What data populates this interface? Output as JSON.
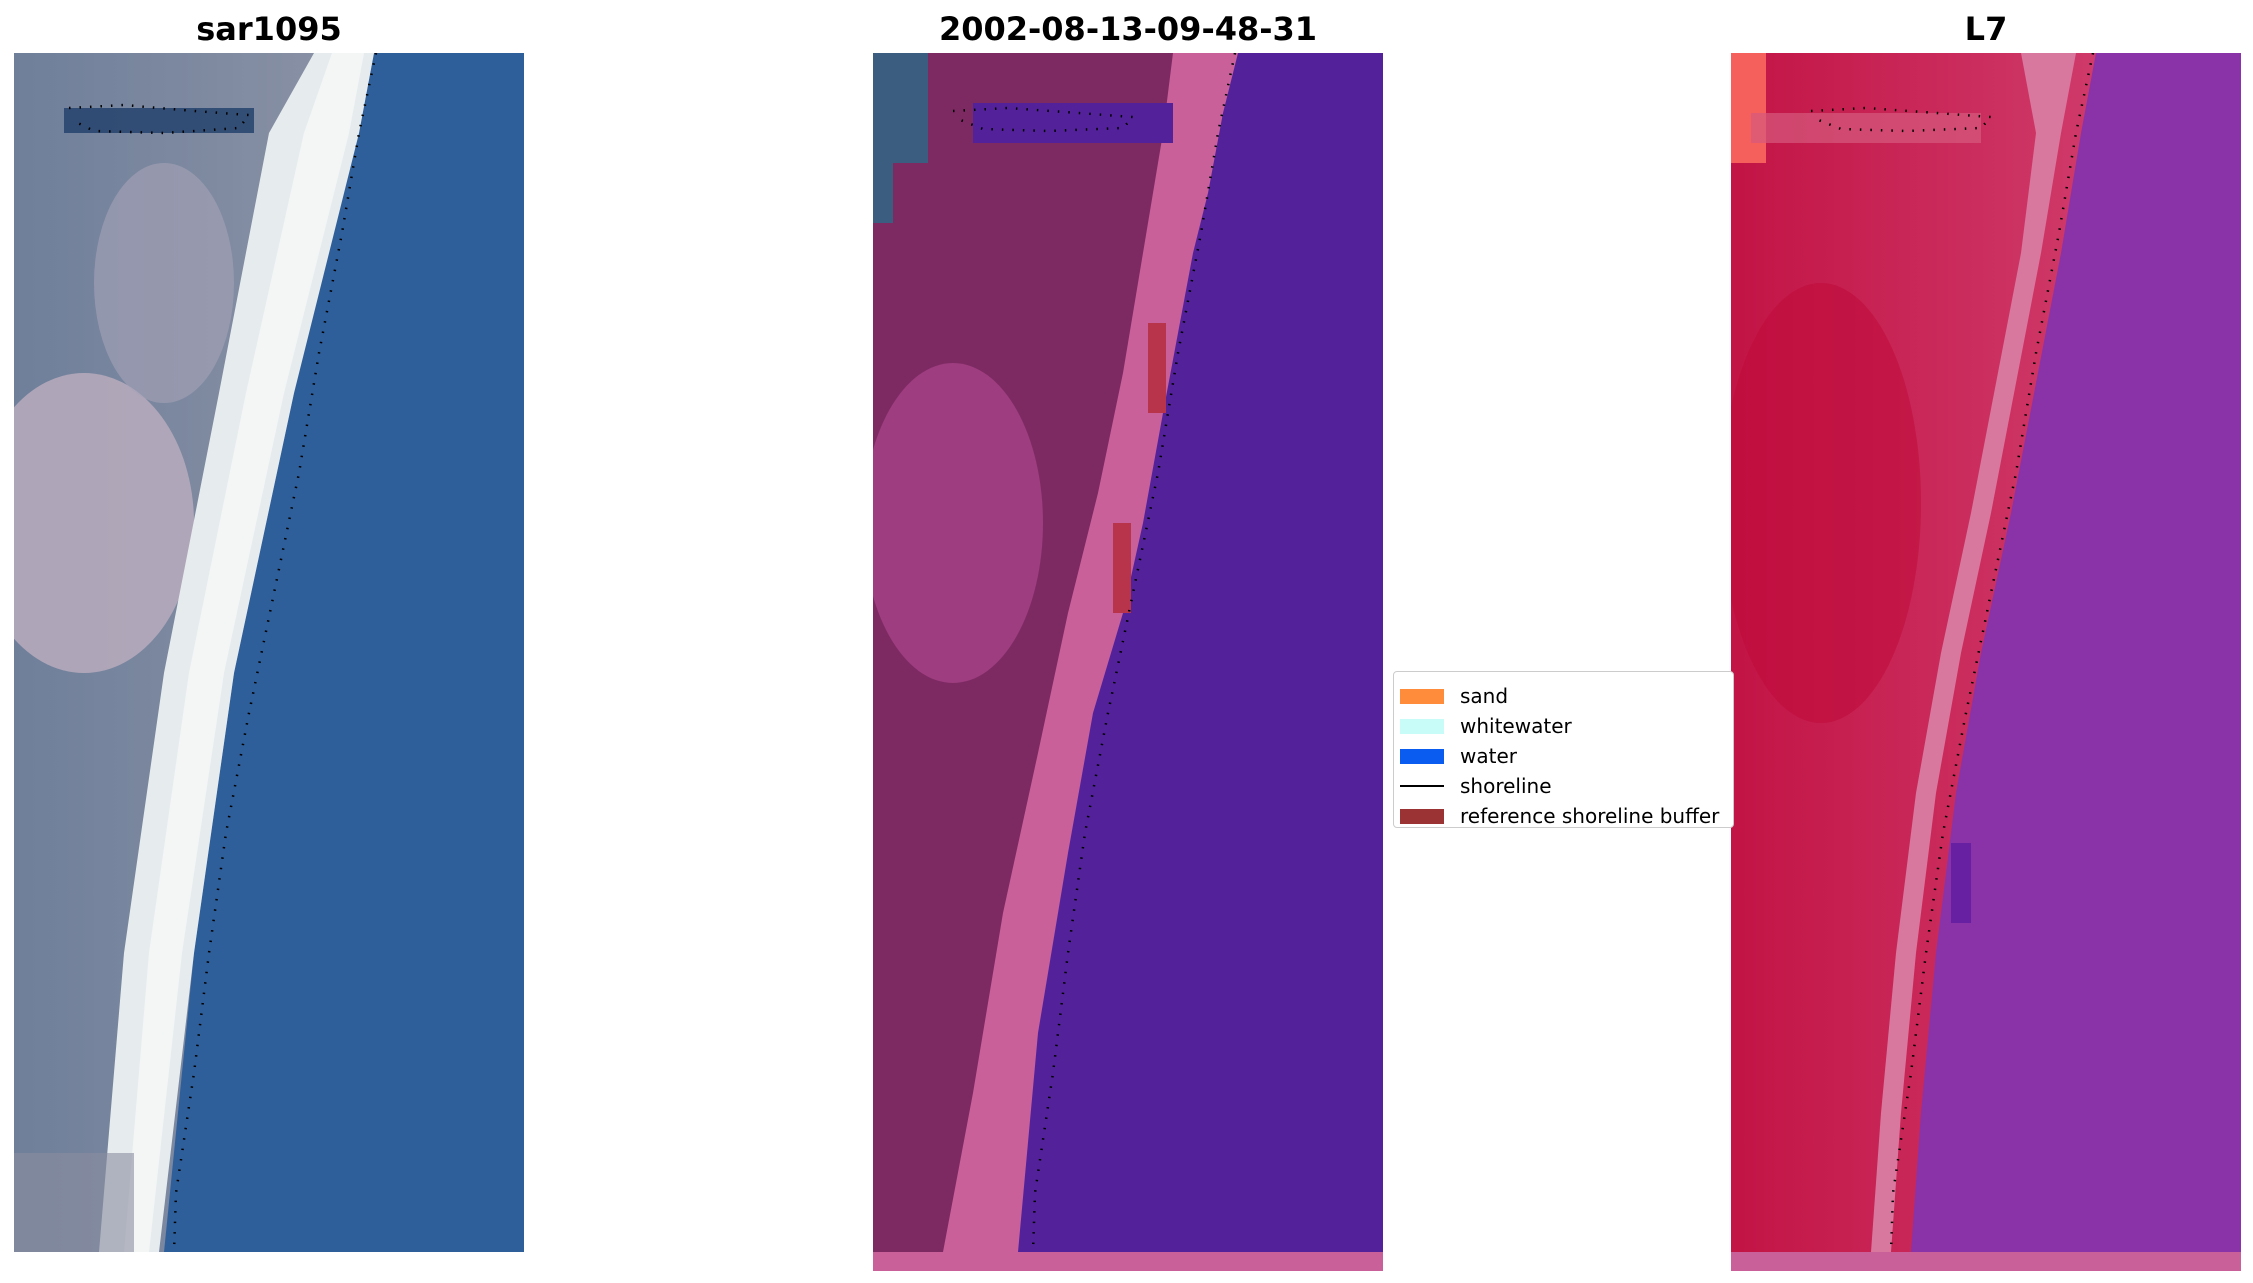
{
  "panels": [
    {
      "title": "sar1095"
    },
    {
      "title": "2002-08-13-09-48-31"
    },
    {
      "title": "L7"
    }
  ],
  "legend": {
    "items": [
      {
        "label": "sand",
        "color": "#ff8c3a"
      },
      {
        "label": "whitewater",
        "color": "#c8fcf8"
      },
      {
        "label": "water",
        "color": "#0a5cf0"
      },
      {
        "label": "shoreline",
        "color": "#000000"
      },
      {
        "label": "reference shoreline buffer",
        "color": "#9b3234"
      }
    ]
  }
}
